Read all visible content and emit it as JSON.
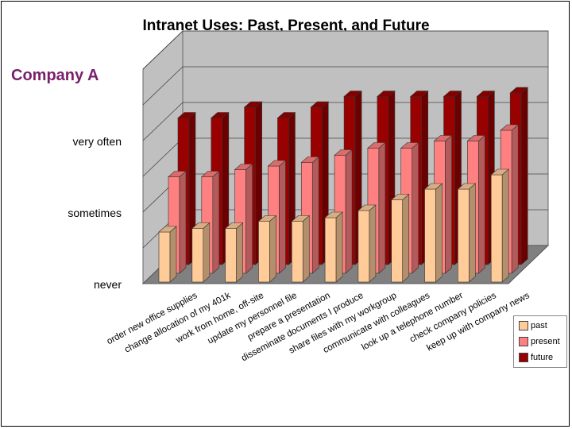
{
  "title": "Intranet Uses:  Past, Present, and Future",
  "subtitle": "Company A",
  "colors": {
    "past": "#ffcc99",
    "present": "#ff8080",
    "future": "#990000"
  },
  "chart_data": {
    "type": "bar",
    "subtype": "3d-clustered-column",
    "title": "Intranet Uses:  Past, Present, and Future",
    "categories": [
      "order new office supplies",
      "change allocation of my 401k",
      "work from home, off-site",
      "update my personnel file",
      "prepare a presentation",
      "disseminate documents I produce",
      "share files with my workgroup",
      "communicate with colleagues",
      "look up a telephone number",
      "check company policies",
      "keep up with company news"
    ],
    "y_tick_labels": [
      "never",
      "sometimes",
      "very often"
    ],
    "ylim": [
      0,
      3
    ],
    "grid": true,
    "legend_position": "bottom-right",
    "series": [
      {
        "name": "past",
        "values": [
          0.7,
          0.75,
          0.75,
          0.85,
          0.85,
          0.9,
          1.0,
          1.15,
          1.3,
          1.3,
          1.5
        ]
      },
      {
        "name": "present",
        "values": [
          1.35,
          1.35,
          1.45,
          1.5,
          1.55,
          1.65,
          1.75,
          1.75,
          1.85,
          1.85,
          2.0
        ]
      },
      {
        "name": "future",
        "values": [
          2.05,
          2.05,
          2.2,
          2.05,
          2.2,
          2.35,
          2.35,
          2.35,
          2.35,
          2.35,
          2.4
        ]
      }
    ]
  }
}
